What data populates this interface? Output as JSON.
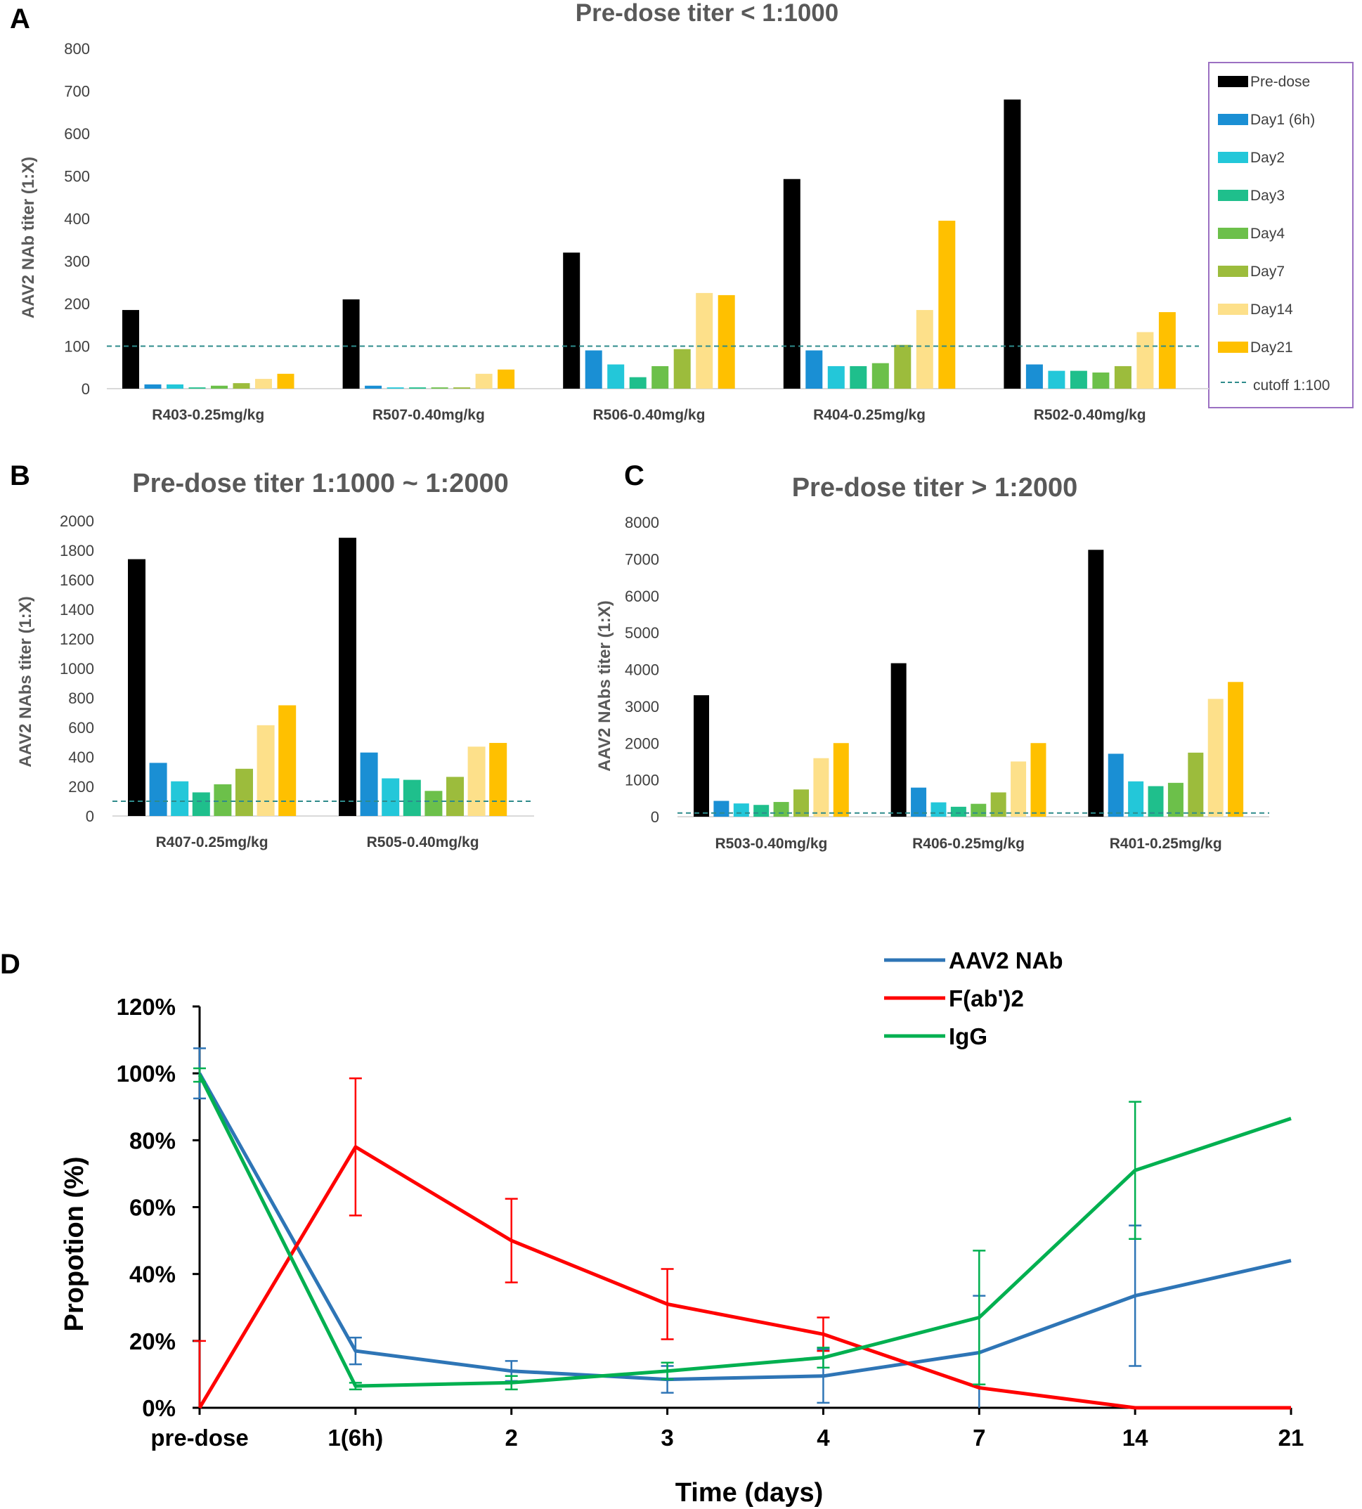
{
  "colors": {
    "Pre-dose": "#000000",
    "Day1 (6h)": "#1a8fd4",
    "Day2": "#23c7d9",
    "Day3": "#1fbf8c",
    "Day4": "#6cc04a",
    "Day7": "#9cbc3c",
    "Day14": "#fde08a",
    "Day21": "#ffc000",
    "cutoff": "#2e8b8b",
    "AAV2 NAb": "#2e75b6",
    "F(ab')2": "#ff0000",
    "IgG": "#00b050"
  },
  "chart_data": [
    {
      "panel": "A",
      "type": "bar",
      "title": "Pre-dose titer < 1:1000",
      "ylabel": "AAV2 NAb titer (1:X)",
      "ylim": [
        0,
        800
      ],
      "yticks": [
        "0",
        "100",
        "200",
        "300",
        "400",
        "500",
        "600",
        "700",
        "800"
      ],
      "cutoff": 100,
      "cutoff_label": "cutoff 1:100",
      "legend": [
        "Pre-dose",
        "Day1 (6h)",
        "Day2",
        "Day3",
        "Day4",
        "Day7",
        "Day14",
        "Day21"
      ],
      "categories": [
        "R403-0.25mg/kg",
        "R507-0.40mg/kg",
        "R506-0.40mg/kg",
        "R404-0.25mg/kg",
        "R502-0.40mg/kg"
      ],
      "series": [
        {
          "name": "Pre-dose",
          "values": [
            185,
            210,
            320,
            493,
            680
          ]
        },
        {
          "name": "Day1 (6h)",
          "values": [
            10,
            7,
            90,
            90,
            57
          ]
        },
        {
          "name": "Day2",
          "values": [
            10,
            3,
            57,
            53,
            42
          ]
        },
        {
          "name": "Day3",
          "values": [
            3,
            3,
            27,
            53,
            42
          ]
        },
        {
          "name": "Day4",
          "values": [
            7,
            3,
            53,
            60,
            38
          ]
        },
        {
          "name": "Day7",
          "values": [
            13,
            3,
            93,
            103,
            53
          ]
        },
        {
          "name": "Day14",
          "values": [
            23,
            35,
            225,
            185,
            133
          ]
        },
        {
          "name": "Day21",
          "values": [
            35,
            45,
            220,
            395,
            180
          ]
        }
      ]
    },
    {
      "panel": "B",
      "type": "bar",
      "title": "Pre-dose titer 1:1000 ~ 1:2000",
      "ylabel": "AAV2 NAbs titer (1:X)",
      "ylim": [
        0,
        2000
      ],
      "yticks": [
        "0",
        "200",
        "400",
        "600",
        "800",
        "1000",
        "1200",
        "1400",
        "1600",
        "1800",
        "2000"
      ],
      "cutoff": 100,
      "categories": [
        "R407-0.25mg/kg",
        "R505-0.40mg/kg"
      ],
      "series": [
        {
          "name": "Pre-dose",
          "values": [
            1740,
            1885
          ]
        },
        {
          "name": "Day1 (6h)",
          "values": [
            360,
            430
          ]
        },
        {
          "name": "Day2",
          "values": [
            235,
            255
          ]
        },
        {
          "name": "Day3",
          "values": [
            160,
            245
          ]
        },
        {
          "name": "Day4",
          "values": [
            215,
            170
          ]
        },
        {
          "name": "Day7",
          "values": [
            320,
            265
          ]
        },
        {
          "name": "Day14",
          "values": [
            615,
            470
          ]
        },
        {
          "name": "Day21",
          "values": [
            750,
            495
          ]
        }
      ]
    },
    {
      "panel": "C",
      "type": "bar",
      "title": "Pre-dose titer > 1:2000",
      "ylabel": "AAV2 NAbs titer (1:X)",
      "ylim": [
        0,
        8000
      ],
      "yticks": [
        "0",
        "1000",
        "2000",
        "3000",
        "4000",
        "5000",
        "6000",
        "7000",
        "8000"
      ],
      "cutoff": 100,
      "categories": [
        "R503-0.40mg/kg",
        "R406-0.25mg/kg",
        "R401-0.25mg/kg"
      ],
      "series": [
        {
          "name": "Pre-dose",
          "values": [
            3300,
            4170,
            7250
          ]
        },
        {
          "name": "Day1 (6h)",
          "values": [
            430,
            790,
            1710
          ]
        },
        {
          "name": "Day2",
          "values": [
            360,
            390,
            960
          ]
        },
        {
          "name": "Day3",
          "values": [
            320,
            270,
            830
          ]
        },
        {
          "name": "Day4",
          "values": [
            400,
            350,
            920
          ]
        },
        {
          "name": "Day7",
          "values": [
            740,
            660,
            1740
          ]
        },
        {
          "name": "Day14",
          "values": [
            1590,
            1500,
            3200
          ]
        },
        {
          "name": "Day21",
          "values": [
            2000,
            2000,
            3660
          ]
        }
      ]
    },
    {
      "panel": "D",
      "type": "line",
      "xlabel": "Time (days)",
      "ylabel": "Propotion (%)",
      "ylim": [
        0,
        120
      ],
      "yticks": [
        "0%",
        "20%",
        "40%",
        "60%",
        "80%",
        "100%",
        "120%"
      ],
      "categories": [
        "pre-dose",
        "1(6h)",
        "2",
        "3",
        "4",
        "7",
        "14",
        "21"
      ],
      "series": [
        {
          "name": "AAV2 NAb",
          "values": [
            100,
            17,
            11,
            8.5,
            9.5,
            16.5,
            33.5,
            44
          ],
          "errors": [
            7.5,
            4,
            3,
            4,
            8,
            17,
            21,
            null
          ]
        },
        {
          "name": "F(ab')2",
          "values": [
            0,
            78,
            50,
            31,
            22,
            6,
            0,
            0
          ],
          "errors": [
            20,
            20.5,
            12.5,
            10.5,
            5,
            null,
            null,
            null
          ]
        },
        {
          "name": "IgG",
          "values": [
            99.5,
            6.5,
            7.5,
            11,
            15,
            27,
            71,
            86.5
          ],
          "errors": [
            2,
            1,
            2,
            2.5,
            3,
            20,
            20.5,
            null
          ]
        }
      ]
    }
  ]
}
